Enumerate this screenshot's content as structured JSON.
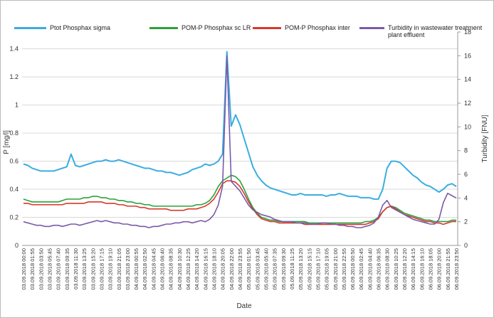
{
  "chart_data": {
    "type": "line",
    "x_label": "Date",
    "y_label": "P [mg/l]",
    "y2_label": "Turbidity [FNU]",
    "categories": [
      "03.09.2018 00:00",
      null,
      "03.09.2018 01:55",
      null,
      "03.09.2018 03:50",
      null,
      "03.09.2018 05:45",
      null,
      "03.09.2018 07:40",
      null,
      "03.09.2018 09:35",
      null,
      "03.09.2018 11:30",
      null,
      "03.09.2018 13:25",
      null,
      "03.09.2018 15:20",
      null,
      "03.09.2018 17:15",
      null,
      "03.09.2018 19:10",
      null,
      "03.09.2018 21:05",
      null,
      "03.09.2018 23:00",
      null,
      "04.09.2018 00:55",
      null,
      "04.09.2018 02:50",
      null,
      "04.09.2018 04:45",
      null,
      "04.09.2018 06:40",
      null,
      "04.09.2018 08:35",
      null,
      "04.09.2018 10:30",
      null,
      "04.09.2018 12:25",
      null,
      "04.09.2018 14:20",
      null,
      "04.09.2018 16:15",
      null,
      "04.09.2018 18:10",
      null,
      "04.09.2018 20:05",
      null,
      "04.09.2018 22:00",
      null,
      "04.09.2018 23:55",
      null,
      "05.09.2018 01:50",
      null,
      "05.09.2018 03:45",
      null,
      "05.09.2018 05:40",
      null,
      "05.09.2018 07:35",
      null,
      "05.09.2018 09:30",
      null,
      "05.09.2018 11:25",
      null,
      "05.09.2018 13:20",
      null,
      "05.09.2018 15:15",
      null,
      "05.09.2018 17:10",
      null,
      "05.09.2018 19:05",
      null,
      "05.09.2018 21:00",
      null,
      "05.09.2018 22:55",
      null,
      "06.09.2018 00:50",
      null,
      "06.09.2018 02:45",
      null,
      "06.09.2018 04:40",
      null,
      "06.09.2018 06:35",
      null,
      "06.09.2018 08:30",
      null,
      "06.09.2018 10:25",
      null,
      "06.09.2018 12:20",
      null,
      "06.09.2018 14:15",
      null,
      "06.09.2018 16:10",
      null,
      "06.09.2018 18:05",
      null,
      "06.09.2018 20:00",
      null,
      "06.09.2018 21:55",
      null,
      "06.09.2018 23:50"
    ],
    "series": [
      {
        "name": "Ptot Phosphax sigma",
        "color": "#3aade0",
        "values": [
          0.58,
          0.57,
          0.55,
          0.54,
          0.53,
          0.53,
          0.53,
          0.53,
          0.54,
          0.55,
          0.56,
          0.65,
          0.57,
          0.56,
          0.57,
          0.58,
          0.59,
          0.6,
          0.6,
          0.61,
          0.6,
          0.6,
          0.61,
          0.6,
          0.59,
          0.58,
          0.57,
          0.56,
          0.55,
          0.55,
          0.54,
          0.53,
          0.53,
          0.52,
          0.52,
          0.51,
          0.5,
          0.51,
          0.52,
          0.54,
          0.55,
          0.56,
          0.58,
          0.57,
          0.58,
          0.6,
          0.65,
          1.38,
          0.85,
          0.93,
          0.86,
          0.76,
          0.66,
          0.56,
          0.5,
          0.46,
          0.43,
          0.41,
          0.4,
          0.39,
          0.38,
          0.37,
          0.36,
          0.36,
          0.37,
          0.36,
          0.36,
          0.36,
          0.36,
          0.36,
          0.35,
          0.36,
          0.36,
          0.37,
          0.36,
          0.35,
          0.35,
          0.35,
          0.34,
          0.34,
          0.34,
          0.33,
          0.33,
          0.4,
          0.55,
          0.6,
          0.6,
          0.59,
          0.56,
          0.53,
          0.5,
          0.48,
          0.45,
          0.43,
          0.42,
          0.4,
          0.38,
          0.4,
          0.43,
          0.44,
          0.42
        ]
      },
      {
        "name": "POM-P Phosphax sc LR",
        "color": "#2aa23a",
        "values": [
          0.33,
          0.32,
          0.31,
          0.31,
          0.31,
          0.31,
          0.31,
          0.31,
          0.31,
          0.32,
          0.33,
          0.33,
          0.33,
          0.33,
          0.34,
          0.34,
          0.35,
          0.35,
          0.34,
          0.34,
          0.33,
          0.33,
          0.32,
          0.32,
          0.31,
          0.31,
          0.3,
          0.3,
          0.29,
          0.29,
          0.28,
          0.28,
          0.28,
          0.28,
          0.28,
          0.28,
          0.28,
          0.28,
          0.28,
          0.28,
          0.29,
          0.29,
          0.3,
          0.32,
          0.36,
          0.42,
          0.46,
          0.48,
          0.5,
          0.49,
          0.46,
          0.4,
          0.33,
          0.27,
          0.23,
          0.2,
          0.19,
          0.18,
          0.18,
          0.17,
          0.17,
          0.17,
          0.17,
          0.17,
          0.17,
          0.17,
          0.16,
          0.16,
          0.16,
          0.16,
          0.16,
          0.16,
          0.16,
          0.16,
          0.16,
          0.16,
          0.16,
          0.16,
          0.16,
          0.17,
          0.17,
          0.18,
          0.2,
          0.24,
          0.27,
          0.28,
          0.27,
          0.25,
          0.23,
          0.22,
          0.21,
          0.2,
          0.19,
          0.18,
          0.18,
          0.17,
          0.17,
          0.17,
          0.17,
          0.18,
          0.18
        ]
      },
      {
        "name": "POM-P Phosphax inter",
        "color": "#d8372c",
        "values": [
          0.3,
          0.3,
          0.29,
          0.29,
          0.29,
          0.29,
          0.29,
          0.29,
          0.29,
          0.29,
          0.3,
          0.3,
          0.3,
          0.3,
          0.3,
          0.31,
          0.31,
          0.31,
          0.31,
          0.3,
          0.3,
          0.3,
          0.29,
          0.29,
          0.28,
          0.28,
          0.28,
          0.27,
          0.27,
          0.26,
          0.26,
          0.26,
          0.26,
          0.26,
          0.25,
          0.25,
          0.25,
          0.25,
          0.26,
          0.26,
          0.26,
          0.27,
          0.28,
          0.3,
          0.33,
          0.38,
          0.44,
          0.46,
          0.46,
          0.45,
          0.42,
          0.37,
          0.31,
          0.26,
          0.22,
          0.19,
          0.18,
          0.17,
          0.17,
          0.16,
          0.16,
          0.16,
          0.16,
          0.16,
          0.16,
          0.15,
          0.15,
          0.15,
          0.15,
          0.15,
          0.15,
          0.15,
          0.15,
          0.15,
          0.15,
          0.15,
          0.15,
          0.15,
          0.15,
          0.15,
          0.16,
          0.17,
          0.19,
          0.24,
          0.27,
          0.28,
          0.26,
          0.24,
          0.22,
          0.21,
          0.2,
          0.19,
          0.18,
          0.17,
          0.17,
          0.16,
          0.16,
          0.15,
          0.16,
          0.17,
          0.17
        ]
      },
      {
        "name": "Turbidity in wastewater treatment plant effluent",
        "color": "#7a5ba8",
        "axis": "y2",
        "values": [
          2.0,
          1.9,
          1.8,
          1.7,
          1.7,
          1.6,
          1.6,
          1.7,
          1.7,
          1.6,
          1.7,
          1.8,
          1.8,
          1.7,
          1.8,
          1.9,
          2.0,
          2.1,
          2.0,
          2.1,
          2.0,
          1.9,
          1.9,
          1.8,
          1.8,
          1.7,
          1.7,
          1.6,
          1.6,
          1.5,
          1.6,
          1.6,
          1.7,
          1.8,
          1.8,
          1.9,
          1.9,
          2.0,
          2.0,
          1.9,
          2.0,
          2.1,
          2.0,
          2.2,
          2.6,
          3.4,
          5,
          16,
          5.4,
          5,
          4.6,
          4,
          3.4,
          3,
          2.8,
          2.6,
          2.5,
          2.4,
          2.2,
          2.1,
          2.0,
          2.0,
          2.0,
          1.9,
          1.9,
          1.9,
          1.8,
          1.8,
          1.8,
          1.9,
          1.9,
          1.8,
          1.8,
          1.7,
          1.7,
          1.6,
          1.6,
          1.5,
          1.5,
          1.6,
          1.7,
          1.9,
          2.4,
          3.4,
          3.8,
          3.2,
          3.0,
          2.8,
          2.6,
          2.4,
          2.2,
          2.1,
          2.0,
          1.9,
          1.8,
          1.8,
          2.2,
          3.6,
          4.4,
          4.2,
          4.0
        ]
      }
    ],
    "ylim": [
      0,
      1.52
    ],
    "yticks": [
      0,
      0.2,
      0.4,
      0.6,
      0.8,
      1,
      1.2,
      1.4
    ],
    "y2lim": [
      0,
      18
    ],
    "y2ticks": [
      0,
      2,
      4,
      6,
      8,
      10,
      12,
      14,
      16,
      18
    ],
    "grid": true
  }
}
